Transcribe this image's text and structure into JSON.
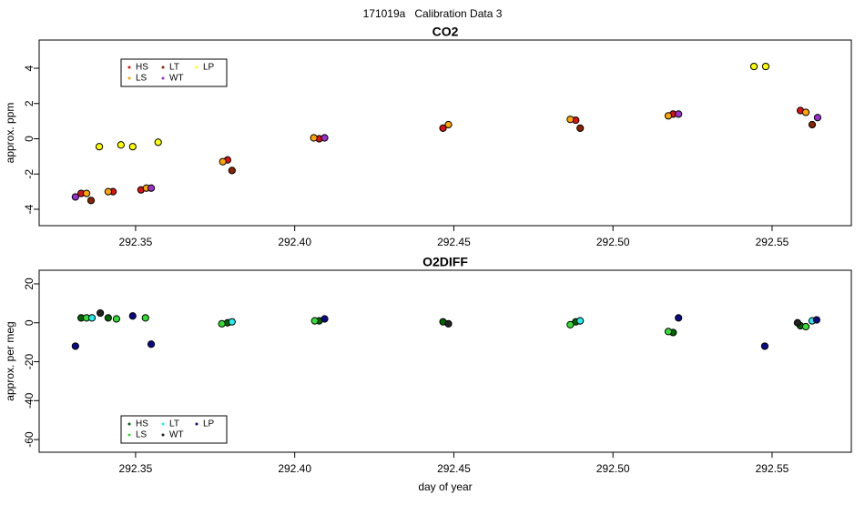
{
  "title": "171019a   Calibration Data 3",
  "chart_data": [
    {
      "type": "scatter",
      "title": "CO2",
      "ylabel": "approx. ppm",
      "xlim": [
        292.3197,
        292.5749
      ],
      "ylim": [
        -4.93,
        5.6
      ],
      "xticks": [
        292.35,
        {
          "value": 292.4,
          "label": "292.40"
        },
        292.45,
        {
          "value": 292.5,
          "label": "292.50"
        },
        292.55
      ],
      "yticks": [
        -4,
        -2,
        0,
        2,
        4
      ],
      "legend": "top-left",
      "series": [
        {
          "name": "HS",
          "color": "#dd1111",
          "x": [
            292.3329,
            292.3429,
            292.3517,
            292.3789,
            292.4077,
            292.4466,
            292.4883,
            292.5189,
            292.5589
          ],
          "values": [
            -3.1,
            -3.0,
            -2.9,
            -1.2,
            0.0,
            0.6,
            1.05,
            1.4,
            1.6
          ]
        },
        {
          "name": "LS",
          "color": "#ffa500",
          "x": [
            292.3346,
            292.3414,
            292.3534,
            292.3774,
            292.406,
            292.4483,
            292.4866,
            292.5174,
            292.5606
          ],
          "values": [
            -3.1,
            -3.0,
            -2.8,
            -1.3,
            0.05,
            0.8,
            1.1,
            1.3,
            1.5
          ]
        },
        {
          "name": "LT",
          "color": "#8b2500",
          "x": [
            292.336,
            292.3803,
            292.4897,
            292.5626
          ],
          "values": [
            -3.5,
            -1.8,
            0.6,
            0.8
          ]
        },
        {
          "name": "WT",
          "color": "#9932cc",
          "x": [
            292.3311,
            292.3549,
            292.4094,
            292.5206,
            292.5643
          ],
          "values": [
            -3.3,
            -2.8,
            0.05,
            1.4,
            1.2
          ]
        },
        {
          "name": "LP",
          "color": "#ffff00",
          "x": [
            292.3386,
            292.3454,
            292.3491,
            292.3571,
            292.5443,
            292.548
          ],
          "values": [
            -0.45,
            -0.35,
            -0.45,
            -0.2,
            4.1,
            4.1
          ]
        }
      ]
    },
    {
      "type": "scatter",
      "title": "O2DIFF",
      "ylabel": "approx. per meg",
      "xlabel": "day of year",
      "xlim": [
        292.3197,
        292.5749
      ],
      "ylim": [
        -66.5,
        27.0
      ],
      "xticks": [
        292.35,
        {
          "value": 292.4,
          "label": "292.40"
        },
        292.45,
        {
          "value": 292.5,
          "label": "292.50"
        },
        292.55
      ],
      "yticks": [
        -60,
        -40,
        -20,
        0,
        20
      ],
      "legend": "bottom-left",
      "series": [
        {
          "name": "HS",
          "color": "#006400",
          "x": [
            292.3329,
            292.3414,
            292.3789,
            292.4077,
            292.4466,
            292.4883,
            292.5189,
            292.5589
          ],
          "values": [
            2.5,
            2.5,
            0.0,
            1.0,
            0.5,
            0.5,
            -5.0,
            -1.5
          ]
        },
        {
          "name": "LS",
          "color": "#33dd33",
          "x": [
            292.3346,
            292.344,
            292.3531,
            292.3771,
            292.4063,
            292.4866,
            292.5174,
            292.5606
          ],
          "values": [
            2.5,
            2.0,
            2.5,
            -0.5,
            1.0,
            -1.0,
            -4.5,
            -2.0
          ]
        },
        {
          "name": "LT",
          "color": "#22eeee",
          "x": [
            292.3363,
            292.3803,
            292.4897,
            292.5626
          ],
          "values": [
            2.5,
            0.5,
            1.0,
            1.0
          ]
        },
        {
          "name": "WT",
          "color": "#222222",
          "x": [
            292.3389,
            292.4483,
            292.558
          ],
          "values": [
            5.0,
            -0.5,
            0.0
          ]
        },
        {
          "name": "LP",
          "color": "#0a0a8a",
          "x": [
            292.3311,
            292.3491,
            292.3549,
            292.4094,
            292.5206,
            292.5477,
            292.564
          ],
          "values": [
            -12,
            3.5,
            -11,
            2.0,
            2.5,
            -12,
            1.5
          ]
        }
      ]
    }
  ]
}
